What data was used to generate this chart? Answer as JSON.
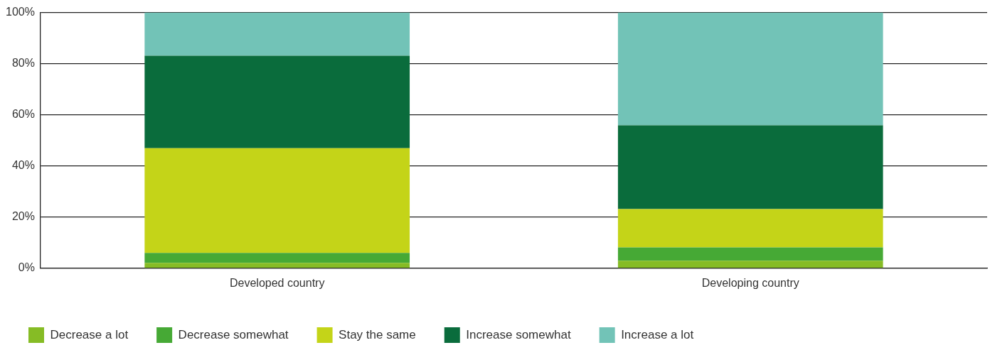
{
  "chart_data": {
    "type": "bar",
    "stacked": true,
    "categories": [
      "Developed country",
      "Developing country"
    ],
    "series": [
      {
        "name": "Decrease a lot",
        "color": "#86bc25",
        "values": [
          2.1,
          2.9
        ]
      },
      {
        "name": "Decrease somewhat",
        "color": "#46a935",
        "values": [
          3.9,
          5.2
        ]
      },
      {
        "name": "Stay the same",
        "color": "#c4d418",
        "values": [
          40.9,
          15.0
        ]
      },
      {
        "name": "Increase somewhat",
        "color": "#0a6c3c",
        "values": [
          36.2,
          32.8
        ]
      },
      {
        "name": "Increase a lot",
        "color": "#72c3b7",
        "values": [
          16.9,
          44.1
        ]
      }
    ],
    "ylim": [
      0,
      100
    ],
    "yticks": [
      {
        "value": 0,
        "label": "0%"
      },
      {
        "value": 20,
        "label": "20%"
      },
      {
        "value": 40,
        "label": "40%"
      },
      {
        "value": 60,
        "label": "60%"
      },
      {
        "value": 80,
        "label": "80%"
      },
      {
        "value": 100,
        "label": "100%"
      }
    ],
    "grid": "y",
    "legend": "bottom"
  }
}
